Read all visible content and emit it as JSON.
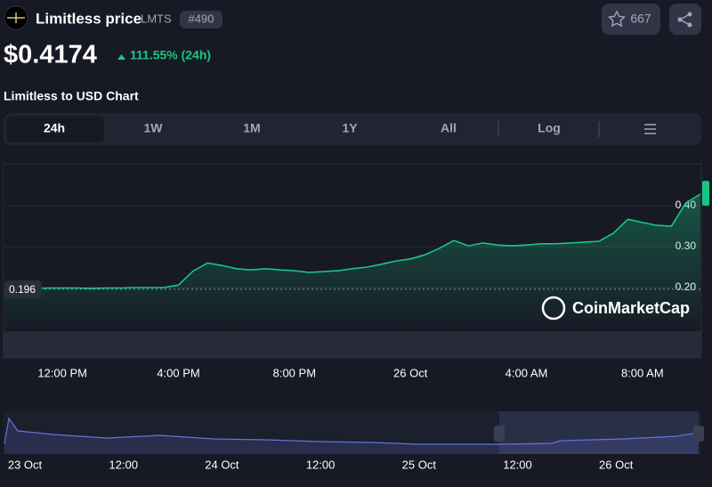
{
  "header": {
    "name": "Limitless price",
    "symbol": "LMTS",
    "rank": "#490",
    "watchlist": "667"
  },
  "price": {
    "value": "$0.4174",
    "change": "111.55% (24h)"
  },
  "chart_heading": "Limitless to USD Chart",
  "tabs": [
    "24h",
    "1W",
    "1M",
    "1Y",
    "All",
    "Log"
  ],
  "watermark": "CoinMarketCap",
  "chart_data": {
    "type": "area",
    "color": "#16c784",
    "categories": [
      null,
      null,
      null,
      null,
      "12:00 PM",
      null,
      null,
      null,
      null,
      null,
      null,
      null,
      "4:00 PM",
      null,
      null,
      null,
      null,
      null,
      null,
      null,
      "8:00 PM",
      null,
      null,
      null,
      null,
      null,
      null,
      null,
      "26 Oct",
      null,
      null,
      null,
      null,
      null,
      null,
      null,
      "4:00 AM",
      null,
      null,
      null,
      null,
      null,
      null,
      null,
      "8:00 AM",
      null,
      null,
      null,
      null
    ],
    "values": [
      0.196,
      0.198,
      0.198,
      0.199,
      0.199,
      0.199,
      0.198,
      0.199,
      0.199,
      0.2,
      0.2,
      0.2,
      0.206,
      0.24,
      0.26,
      0.254,
      0.246,
      0.243,
      0.246,
      0.243,
      0.241,
      0.237,
      0.239,
      0.241,
      0.246,
      0.25,
      0.257,
      0.265,
      0.27,
      0.28,
      0.296,
      0.315,
      0.302,
      0.309,
      0.304,
      0.302,
      0.304,
      0.307,
      0.307,
      0.309,
      0.311,
      0.313,
      0.333,
      0.367,
      0.359,
      0.352,
      0.35,
      0.407,
      0.428
    ],
    "ylim": [
      0.1,
      0.5
    ],
    "yticks": [
      {
        "value": 0.2,
        "label": "0.20"
      },
      {
        "value": 0.3,
        "label": "0.30"
      },
      {
        "value": 0.4,
        "label": "0.40"
      }
    ],
    "baseline": {
      "value": 0.196,
      "label": "0.196"
    },
    "grid": true
  },
  "navigator": {
    "labels": [
      "23 Oct",
      "12:00",
      "24 Oct",
      "12:00",
      "25 Oct",
      "12:00",
      "26 Oct"
    ]
  }
}
